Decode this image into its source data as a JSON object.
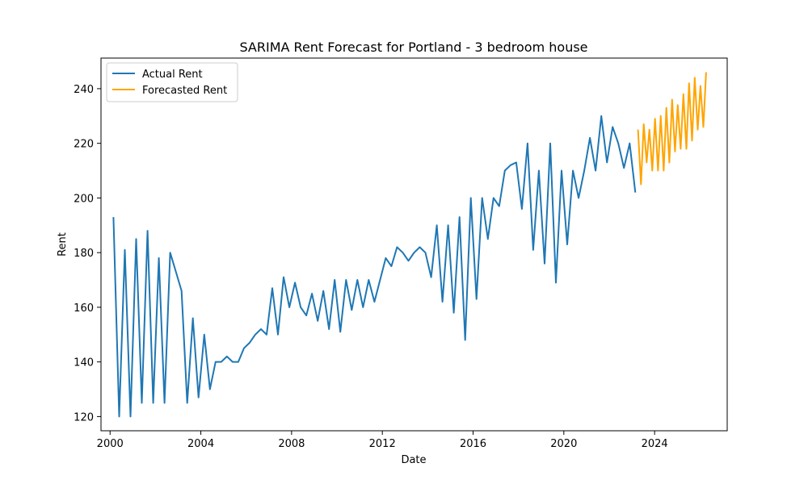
{
  "chart_data": {
    "type": "line",
    "title": "SARIMA Rent Forecast for Portland - 3 bedroom house",
    "xlabel": "Date",
    "ylabel": "Rent",
    "xlim": [
      1999.6,
      2027.2
    ],
    "ylim": [
      114.8,
      251.2
    ],
    "x_ticks": [
      2000,
      2004,
      2008,
      2012,
      2016,
      2020,
      2024
    ],
    "y_ticks": [
      120,
      140,
      160,
      180,
      200,
      220,
      240
    ],
    "grid": false,
    "legend": "upper-left",
    "series": [
      {
        "name": "Actual Rent",
        "color": "#1f77b4",
        "x": [
          2000.15,
          2000.4,
          2000.65,
          2000.9,
          2001.15,
          2001.4,
          2001.65,
          2001.9,
          2002.15,
          2002.4,
          2002.65,
          2002.9,
          2003.15,
          2003.4,
          2003.65,
          2003.9,
          2004.15,
          2004.4,
          2004.65,
          2004.9,
          2005.15,
          2005.4,
          2005.65,
          2005.9,
          2006.15,
          2006.4,
          2006.65,
          2006.9,
          2007.15,
          2007.4,
          2007.65,
          2007.9,
          2008.15,
          2008.4,
          2008.65,
          2008.9,
          2009.15,
          2009.4,
          2009.65,
          2009.9,
          2010.15,
          2010.4,
          2010.65,
          2010.9,
          2011.15,
          2011.4,
          2011.65,
          2011.9,
          2012.15,
          2012.4,
          2012.65,
          2012.9,
          2013.15,
          2013.4,
          2013.65,
          2013.9,
          2014.15,
          2014.4,
          2014.65,
          2014.9,
          2015.15,
          2015.4,
          2015.65,
          2015.9,
          2016.15,
          2016.4,
          2016.65,
          2016.9,
          2017.15,
          2017.4,
          2017.65,
          2017.9,
          2018.15,
          2018.4,
          2018.65,
          2018.9,
          2019.15,
          2019.4,
          2019.65,
          2019.9,
          2020.15,
          2020.4,
          2020.65,
          2020.9,
          2021.15,
          2021.4,
          2021.65,
          2021.9,
          2022.15,
          2022.4,
          2022.65,
          2022.9,
          2023.15
        ],
        "values": [
          193,
          120,
          181,
          120,
          185,
          125,
          188,
          125,
          178,
          125,
          180,
          173,
          166,
          125,
          156,
          127,
          150,
          130,
          140,
          140,
          142,
          140,
          140,
          145,
          147,
          150,
          152,
          150,
          167,
          150,
          171,
          160,
          169,
          160,
          157,
          165,
          155,
          166,
          152,
          170,
          151,
          170,
          159,
          170,
          160,
          170,
          162,
          170,
          178,
          175,
          182,
          180,
          177,
          180,
          182,
          180,
          171,
          190,
          162,
          190,
          158,
          193,
          148,
          200,
          163,
          200,
          185,
          200,
          197,
          210,
          212,
          213,
          196,
          220,
          181,
          210,
          176,
          220,
          169,
          210,
          183,
          210,
          200,
          210,
          222,
          210,
          230,
          213,
          226,
          220,
          211,
          220,
          202
        ]
      },
      {
        "name": "Forecasted Rent",
        "color": "#ffa500",
        "x": [
          2023.27,
          2023.4,
          2023.52,
          2023.65,
          2023.77,
          2023.9,
          2024.02,
          2024.15,
          2024.27,
          2024.4,
          2024.52,
          2024.65,
          2024.77,
          2024.9,
          2025.02,
          2025.15,
          2025.27,
          2025.4,
          2025.52,
          2025.65,
          2025.77,
          2025.9,
          2026.02,
          2026.15,
          2026.27
        ],
        "values": [
          225,
          205,
          227,
          213,
          225,
          210,
          229,
          210,
          230,
          210,
          233,
          213,
          236,
          217,
          234,
          218,
          238,
          218,
          242,
          221,
          244,
          225,
          241,
          226,
          246
        ]
      }
    ]
  }
}
